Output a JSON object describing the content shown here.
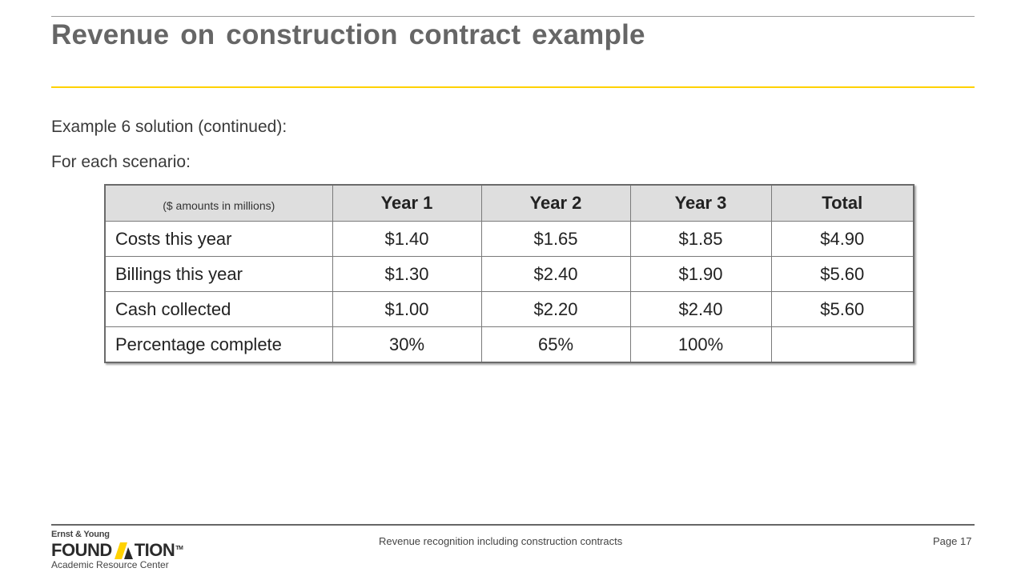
{
  "slide": {
    "title": "Revenue on construction contract example",
    "body_lines": [
      "Example 6 solution (continued):",
      "For each scenario:"
    ]
  },
  "table": {
    "corner_label": "($ amounts in millions)",
    "headers": [
      "Year 1",
      "Year 2",
      "Year 3",
      "Total"
    ],
    "rows": [
      {
        "label": "Costs this year",
        "values": [
          "$1.40",
          "$1.65",
          "$1.85",
          "$4.90"
        ]
      },
      {
        "label": "Billings this year",
        "values": [
          "$1.30",
          "$2.40",
          "$1.90",
          "$5.60"
        ]
      },
      {
        "label": "Cash collected",
        "values": [
          "$1.00",
          "$2.20",
          "$2.40",
          "$5.60"
        ]
      },
      {
        "label": "Percentage complete",
        "values": [
          "30%",
          "65%",
          "100%",
          ""
        ]
      }
    ]
  },
  "footer": {
    "logo_top": "Ernst & Young",
    "logo_word_left": "FOUND",
    "logo_word_right": "TION",
    "logo_tm": "TM",
    "logo_sub": "Academic Resource Center",
    "center_text": "Revenue recognition including construction contracts",
    "page_label": "Page 17"
  },
  "colors": {
    "accent_rule": "#ffd200",
    "title_text": "#666666",
    "header_fill": "#dedede"
  }
}
